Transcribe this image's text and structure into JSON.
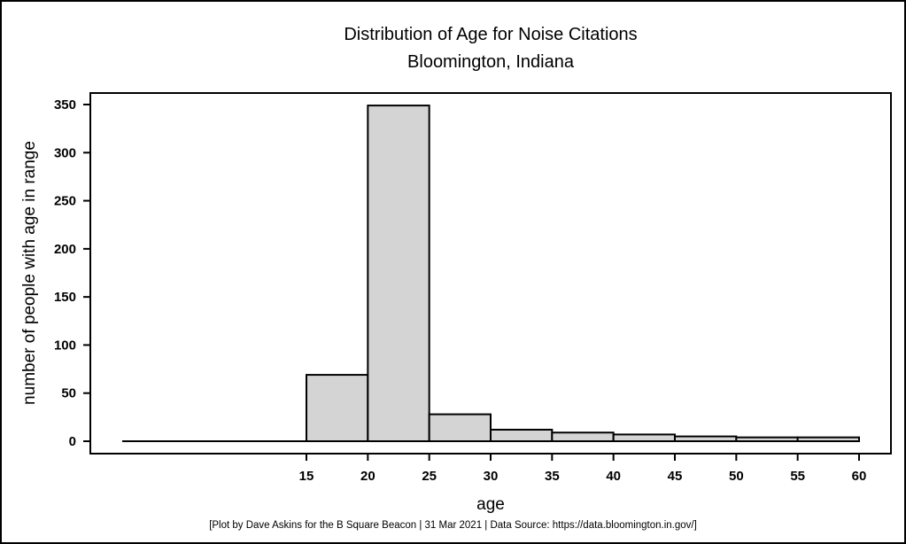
{
  "chart_data": {
    "type": "bar",
    "subtype": "histogram",
    "title": "Distribution of Age for Noise Citations",
    "subtitle": "Bloomington, Indiana",
    "xlabel": "age",
    "ylabel": "number of people with age in range",
    "bin_edges": [
      0,
      5,
      10,
      15,
      20,
      25,
      30,
      35,
      40,
      45,
      50,
      55,
      60
    ],
    "counts": [
      0,
      0,
      0,
      69,
      349,
      28,
      12,
      9,
      7,
      5,
      4,
      4
    ],
    "x_ticks": [
      15,
      20,
      25,
      30,
      35,
      40,
      45,
      50,
      55,
      60
    ],
    "y_ticks": [
      0,
      50,
      100,
      150,
      200,
      250,
      300,
      350
    ],
    "xlim": [
      -2.5,
      62.5
    ],
    "ylim": [
      0,
      362
    ],
    "grid": false,
    "legend_position": "none",
    "bar_fill": "#d4d4d4",
    "bar_stroke": "#000000",
    "axis_color": "#000000",
    "background_color": "#ffffff"
  },
  "footer": {
    "text": "[Plot by Dave Askins for the B Square Beacon | 31 Mar 2021 | Data Source: https://data.bloomington.in.gov/]"
  }
}
